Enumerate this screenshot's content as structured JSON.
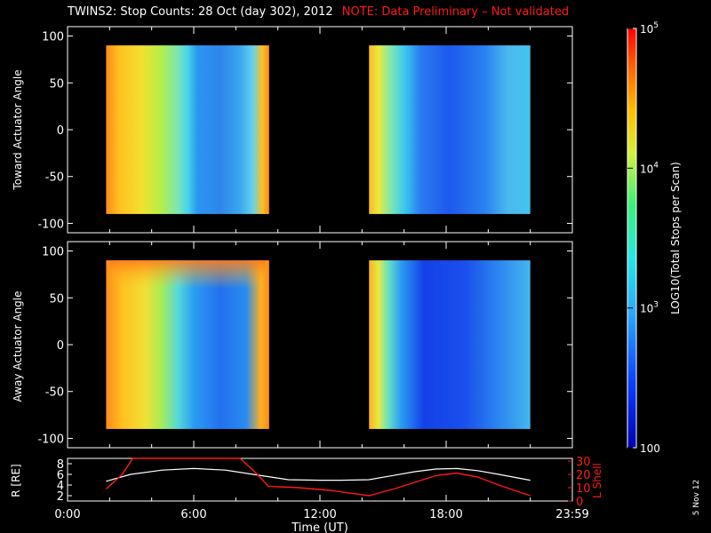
{
  "header": {
    "title": "TWINS2: Stop Counts: 28 Oct (day 302), 2012",
    "note": "NOTE: Data Preliminary – Not validated"
  },
  "colorbar": {
    "label": "LOG10(Total Stops per Scan)",
    "ticks": [
      {
        "base": "10",
        "exp": "5",
        "value": 100000
      },
      {
        "base": "10",
        "exp": "4",
        "value": 10000
      },
      {
        "base": "10",
        "exp": "3",
        "value": 1000
      },
      {
        "base": "100",
        "exp": "",
        "value": 100
      }
    ]
  },
  "footer_date": "5 Nov 12",
  "chart_data": [
    {
      "type": "heatmap",
      "ylabel": "Toward Actuator Angle",
      "ylim": [
        -110,
        110
      ],
      "yticks": [
        "100",
        "50",
        "0",
        "-50",
        "-100"
      ],
      "xlim": [
        "0:00",
        "23:59"
      ],
      "segments": [
        {
          "start": "1:50",
          "end": "9:35"
        },
        {
          "start": "14:20",
          "end": "22:00"
        }
      ],
      "zscale": "log",
      "zlim": [
        100,
        100000
      ]
    },
    {
      "type": "heatmap",
      "ylabel": "Away Actuator Angle",
      "ylim": [
        -110,
        110
      ],
      "yticks": [
        "100",
        "50",
        "0",
        "-50",
        "-100"
      ],
      "xlim": [
        "0:00",
        "23:59"
      ],
      "segments": [
        {
          "start": "1:50",
          "end": "9:35"
        },
        {
          "start": "14:20",
          "end": "22:00"
        }
      ],
      "zscale": "log",
      "zlim": [
        100,
        100000
      ]
    },
    {
      "type": "line",
      "ylabel_left": "R [RE]",
      "ylabel_right": "L Shell",
      "left_ylim": [
        1,
        9
      ],
      "left_yticks": [
        "8",
        "6",
        "4",
        "2"
      ],
      "right_ylim": [
        0,
        32
      ],
      "right_yticks": [
        "30",
        "20",
        "10",
        "0"
      ],
      "xlabel": "Time (UT)",
      "xticks": [
        "0:00",
        "6:00",
        "12:00",
        "18:00",
        "23:59"
      ],
      "series": [
        {
          "name": "R",
          "color": "#ffffff",
          "axis": "left",
          "x": [
            1.83,
            3,
            4.5,
            6,
            7.5,
            9,
            10.5,
            12,
            13,
            14.33,
            15.5,
            16.5,
            17.5,
            18.5,
            19.5,
            20.5,
            22
          ],
          "y": [
            4.7,
            6.0,
            6.8,
            7.1,
            6.8,
            5.9,
            5.0,
            4.9,
            4.9,
            5.0,
            5.8,
            6.5,
            7.0,
            7.1,
            6.7,
            6.0,
            4.9
          ]
        },
        {
          "name": "L Shell",
          "color": "#ff1a1a",
          "axis": "right",
          "x": [
            1.83,
            2.6,
            3.1,
            8.2,
            8.9,
            9.55,
            11,
            12.5,
            14.33,
            15.5,
            16.5,
            17.5,
            18.5,
            19.5,
            20.5,
            22
          ],
          "y": [
            9,
            20,
            32,
            32,
            22,
            11,
            10,
            8,
            4,
            9,
            14,
            19,
            21,
            18,
            12,
            4
          ]
        }
      ]
    }
  ]
}
